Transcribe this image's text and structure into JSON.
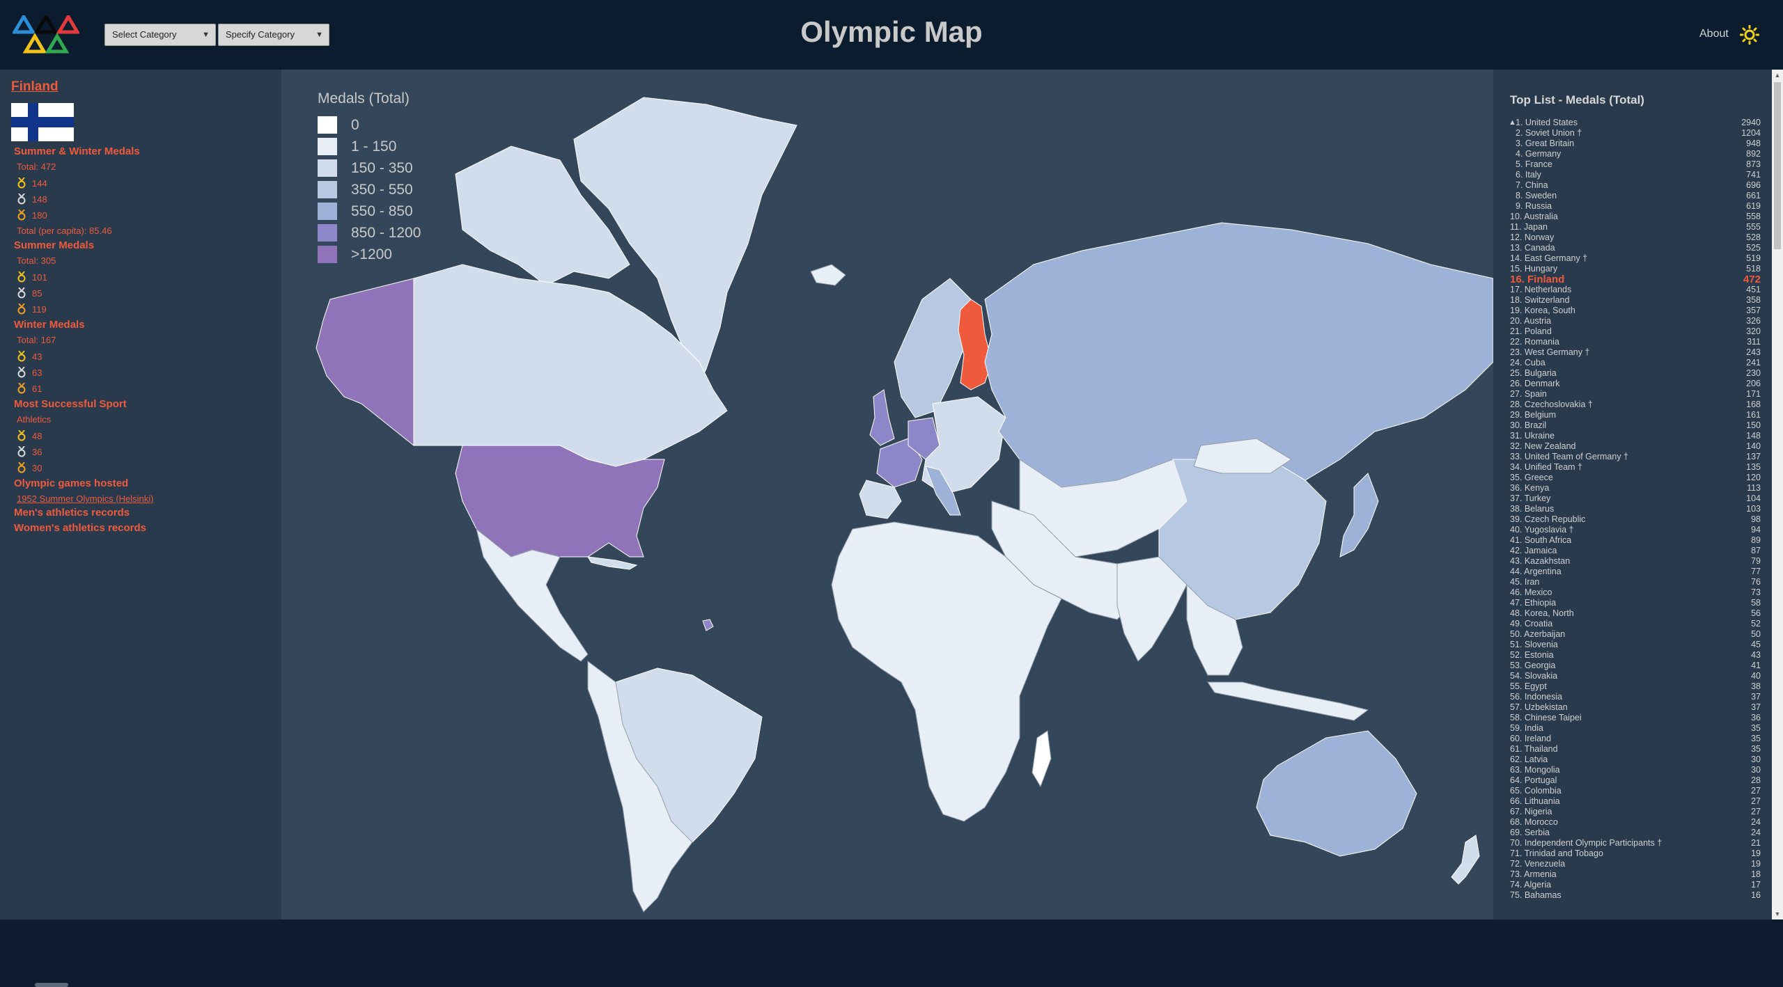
{
  "header": {
    "title": "Olympic Map",
    "category_select": "Select Category",
    "specify_select": "Specify Category",
    "about": "About"
  },
  "country": {
    "name": "Finland",
    "combined": {
      "heading": "Summer & Winter Medals",
      "total": "Total: 472",
      "gold": "144",
      "silver": "148",
      "bronze": "180",
      "per_capita": "Total (per capita): 85.46"
    },
    "summer": {
      "heading": "Summer Medals",
      "total": "Total: 305",
      "gold": "101",
      "silver": "85",
      "bronze": "119"
    },
    "winter": {
      "heading": "Winter Medals",
      "total": "Total: 167",
      "gold": "43",
      "silver": "63",
      "bronze": "61"
    },
    "sport": {
      "heading": "Most Successful Sport",
      "name": "Athletics",
      "gold": "48",
      "silver": "36",
      "bronze": "30"
    },
    "hosted": {
      "heading": "Olympic games hosted",
      "link": "1952 Summer Olympics (Helsinki)"
    },
    "mens_records": "Men's athletics records",
    "womens_records": "Women's athletics records"
  },
  "legend": {
    "title": "Medals (Total)",
    "items": [
      {
        "label": "0",
        "color": "#ffffff"
      },
      {
        "label": "1 - 150",
        "color": "#e8eef6"
      },
      {
        "label": "150 - 350",
        "color": "#d1ddec"
      },
      {
        "label": "350 - 550",
        "color": "#b7c9e2"
      },
      {
        "label": "550 - 850",
        "color": "#9db2d6"
      },
      {
        "label": "850 - 1200",
        "color": "#8d86c8"
      },
      {
        "label": ">1200",
        "color": "#9074ba"
      }
    ],
    "highlight_color": "#f05a3c"
  },
  "toplist": {
    "title": "Top List - Medals (Total)",
    "rows": [
      {
        "label": "1. United States",
        "value": "2940"
      },
      {
        "label": "2. Soviet Union †",
        "value": "1204"
      },
      {
        "label": "3. Great Britain",
        "value": "948"
      },
      {
        "label": "4. Germany",
        "value": "892"
      },
      {
        "label": "5. France",
        "value": "873"
      },
      {
        "label": "6. Italy",
        "value": "741"
      },
      {
        "label": "7. China",
        "value": "696"
      },
      {
        "label": "8. Sweden",
        "value": "661"
      },
      {
        "label": "9. Russia",
        "value": "619"
      },
      {
        "label": "10. Australia",
        "value": "558"
      },
      {
        "label": "11. Japan",
        "value": "555"
      },
      {
        "label": "12. Norway",
        "value": "528"
      },
      {
        "label": "13. Canada",
        "value": "525"
      },
      {
        "label": "14. East Germany †",
        "value": "519"
      },
      {
        "label": "15. Hungary",
        "value": "518"
      },
      {
        "label": "16. Finland",
        "value": "472"
      },
      {
        "label": "17. Netherlands",
        "value": "451"
      },
      {
        "label": "18. Switzerland",
        "value": "358"
      },
      {
        "label": "19. Korea, South",
        "value": "357"
      },
      {
        "label": "20. Austria",
        "value": "326"
      },
      {
        "label": "21. Poland",
        "value": "320"
      },
      {
        "label": "22. Romania",
        "value": "311"
      },
      {
        "label": "23. West Germany †",
        "value": "243"
      },
      {
        "label": "24. Cuba",
        "value": "241"
      },
      {
        "label": "25. Bulgaria",
        "value": "230"
      },
      {
        "label": "26. Denmark",
        "value": "206"
      },
      {
        "label": "27. Spain",
        "value": "171"
      },
      {
        "label": "28. Czechoslovakia †",
        "value": "168"
      },
      {
        "label": "29. Belgium",
        "value": "161"
      },
      {
        "label": "30. Brazil",
        "value": "150"
      },
      {
        "label": "31. Ukraine",
        "value": "148"
      },
      {
        "label": "32. New Zealand",
        "value": "140"
      },
      {
        "label": "33. United Team of Germany †",
        "value": "137"
      },
      {
        "label": "34. Unified Team †",
        "value": "135"
      },
      {
        "label": "35. Greece",
        "value": "120"
      },
      {
        "label": "36. Kenya",
        "value": "113"
      },
      {
        "label": "37. Turkey",
        "value": "104"
      },
      {
        "label": "38. Belarus",
        "value": "103"
      },
      {
        "label": "39. Czech Republic",
        "value": "98"
      },
      {
        "label": "40. Yugoslavia †",
        "value": "94"
      },
      {
        "label": "41. South Africa",
        "value": "89"
      },
      {
        "label": "42. Jamaica",
        "value": "87"
      },
      {
        "label": "43. Kazakhstan",
        "value": "79"
      },
      {
        "label": "44. Argentina",
        "value": "77"
      },
      {
        "label": "45. Iran",
        "value": "76"
      },
      {
        "label": "46. Mexico",
        "value": "73"
      },
      {
        "label": "47. Ethiopia",
        "value": "58"
      },
      {
        "label": "48. Korea, North",
        "value": "56"
      },
      {
        "label": "49. Croatia",
        "value": "52"
      },
      {
        "label": "50. Azerbaijan",
        "value": "50"
      },
      {
        "label": "51. Slovenia",
        "value": "45"
      },
      {
        "label": "52. Estonia",
        "value": "43"
      },
      {
        "label": "53. Georgia",
        "value": "41"
      },
      {
        "label": "54. Slovakia",
        "value": "40"
      },
      {
        "label": "55. Egypt",
        "value": "38"
      },
      {
        "label": "56. Indonesia",
        "value": "37"
      },
      {
        "label": "57. Uzbekistan",
        "value": "37"
      },
      {
        "label": "58. Chinese Taipei",
        "value": "36"
      },
      {
        "label": "59. India",
        "value": "35"
      },
      {
        "label": "60. Ireland",
        "value": "35"
      },
      {
        "label": "61. Thailand",
        "value": "35"
      },
      {
        "label": "62. Latvia",
        "value": "30"
      },
      {
        "label": "63. Mongolia",
        "value": "30"
      },
      {
        "label": "64. Portugal",
        "value": "28"
      },
      {
        "label": "65. Colombia",
        "value": "27"
      },
      {
        "label": "66. Lithuania",
        "value": "27"
      },
      {
        "label": "67. Nigeria",
        "value": "27"
      },
      {
        "label": "68. Morocco",
        "value": "24"
      },
      {
        "label": "69. Serbia",
        "value": "24"
      },
      {
        "label": "70. Independent Olympic Participants †",
        "value": "21"
      },
      {
        "label": "71. Trinidad and Tobago",
        "value": "19"
      },
      {
        "label": "72. Venezuela",
        "value": "19"
      },
      {
        "label": "73. Armenia",
        "value": "18"
      },
      {
        "label": "74. Algeria",
        "value": "17"
      },
      {
        "label": "75. Bahamas",
        "value": "16"
      }
    ],
    "highlight_index": 15
  }
}
